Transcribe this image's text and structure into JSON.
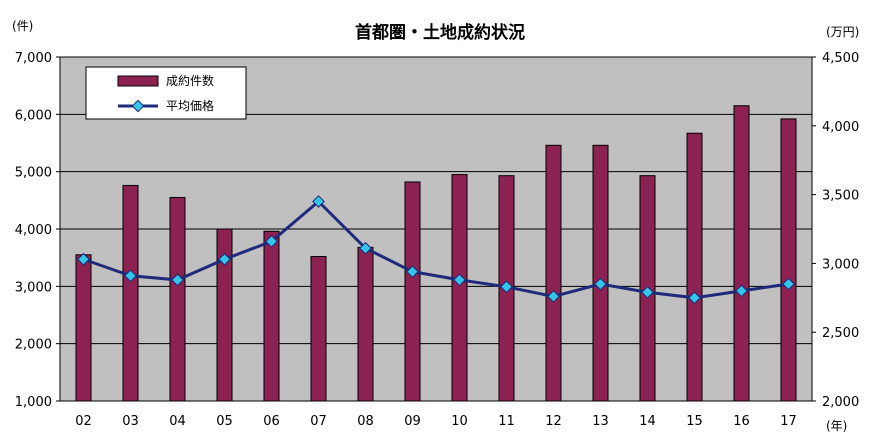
{
  "chart_data": {
    "type": "bar",
    "title": "首都圏・土地成約状況",
    "y_unit_left": "(件)",
    "y_unit_right": "(万円)",
    "x_unit": "(年)",
    "categories": [
      "02",
      "03",
      "04",
      "05",
      "06",
      "07",
      "08",
      "09",
      "10",
      "11",
      "12",
      "13",
      "14",
      "15",
      "16",
      "17"
    ],
    "y_left": {
      "min": 1000,
      "max": 7000,
      "step": 1000,
      "tick_labels": [
        "1,000",
        "2,000",
        "3,000",
        "4,000",
        "5,000",
        "6,000",
        "7,000"
      ]
    },
    "y_right": {
      "min": 2000,
      "max": 4500,
      "step": 500,
      "tick_labels": [
        "2,000",
        "2,500",
        "3,000",
        "3,500",
        "4,000",
        "4,500"
      ]
    },
    "series": [
      {
        "name": "成約件数",
        "type": "bar",
        "axis": "left",
        "color": "#8b2252",
        "values": [
          3550,
          4760,
          4550,
          4000,
          3960,
          3520,
          3680,
          4820,
          4950,
          4930,
          5460,
          5460,
          4930,
          5670,
          6150,
          5920
        ]
      },
      {
        "name": "平均価格",
        "type": "line",
        "axis": "right",
        "color": "#1f2a7a",
        "marker_color": "#33c6e8",
        "values": [
          3030,
          2910,
          2880,
          3030,
          3160,
          3450,
          3110,
          2940,
          2880,
          2830,
          2760,
          2850,
          2790,
          2750,
          2800,
          2850
        ]
      }
    ],
    "plot_background": "#c0c0c0",
    "legend_position": "top-left"
  }
}
